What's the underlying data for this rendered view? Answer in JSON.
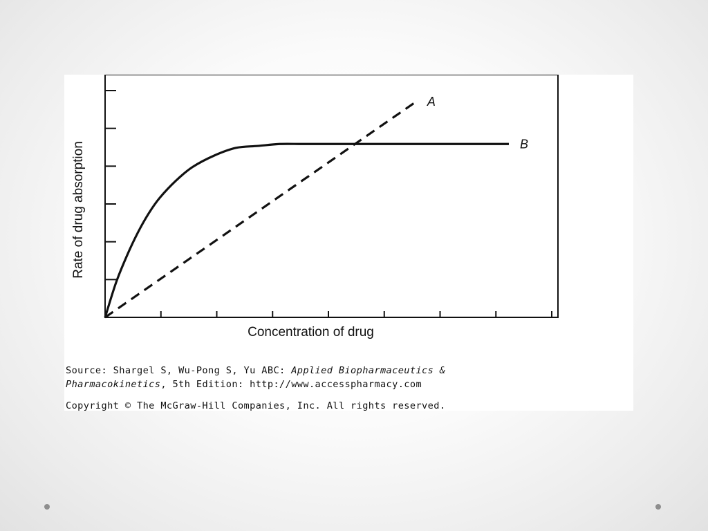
{
  "chart_data": {
    "type": "line",
    "title": "",
    "xlabel": "Concentration of drug",
    "ylabel": "Rate of drug absorption",
    "x_ticks": 8,
    "y_ticks": 6,
    "xlim": [
      0,
      8.3
    ],
    "ylim": [
      0,
      6.3
    ],
    "grid": false,
    "series": [
      {
        "name": "A",
        "style": "dashed",
        "color": "#111111",
        "x": [
          0,
          5.7
        ],
        "y": [
          0,
          5.6
        ]
      },
      {
        "name": "B",
        "style": "solid",
        "color": "#111111",
        "x": [
          0,
          0.2,
          0.4,
          0.6,
          0.8,
          1.0,
          1.3,
          1.6,
          2.0,
          2.4,
          2.8,
          3.2,
          3.6,
          4.0,
          5.0,
          6.0,
          7.4
        ],
        "y": [
          0,
          0.9,
          1.6,
          2.2,
          2.7,
          3.1,
          3.55,
          3.9,
          4.2,
          4.4,
          4.45,
          4.5,
          4.5,
          4.5,
          4.5,
          4.5,
          4.5
        ]
      }
    ]
  },
  "caption": {
    "source_prefix": "Source: Shargel S, Wu-Pong S, Yu ABC: ",
    "book_title_part1": "Applied Biopharmaceutics &",
    "book_title_part2": "Pharmacokinetics",
    "edition_and_url": ", 5th Edition: http://www.accesspharmacy.com",
    "copyright": "Copyright © The McGraw-Hill Companies, Inc. All rights reserved."
  }
}
